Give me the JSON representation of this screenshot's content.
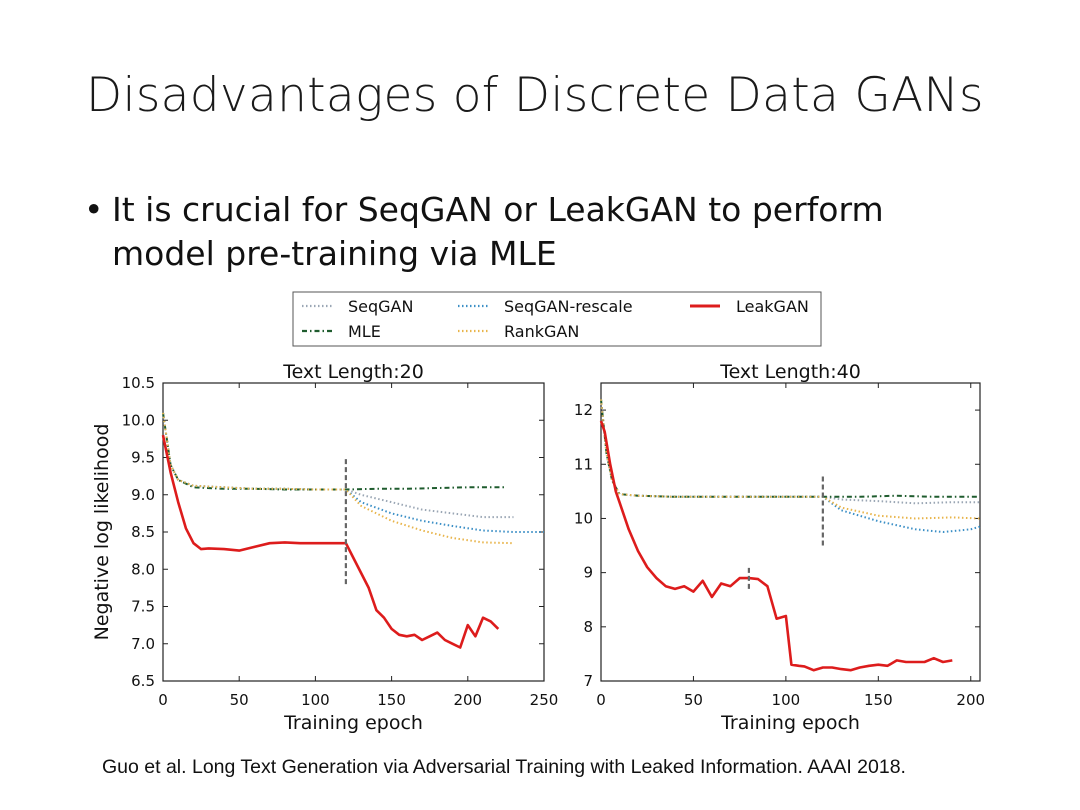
{
  "slide": {
    "title": "Disadvantages of Discrete Data GANs",
    "bullet_marker": "•",
    "bullet": "It is crucial for SeqGAN or LeakGAN to perform model pre-training via MLE",
    "citation": "Guo et al. Long Text Generation via Adversarial Training with Leaked Information. AAAI 2018."
  },
  "legend": [
    {
      "name": "SeqGAN",
      "color": "#9aa6b4",
      "dash": "dotted"
    },
    {
      "name": "SeqGAN-rescale",
      "color": "#3b8fc6",
      "dash": "dotted"
    },
    {
      "name": "LeakGAN",
      "color": "#dd1c1c",
      "dash": "solid"
    },
    {
      "name": "MLE",
      "color": "#1f5c2e",
      "dash": "dashdot"
    },
    {
      "name": "RankGAN",
      "color": "#e8b44a",
      "dash": "dotted"
    }
  ],
  "chart_data": [
    {
      "type": "line",
      "title": "Text Length:20",
      "xlabel": "Training epoch",
      "ylabel": "Negative log likelihood",
      "xlim": [
        0,
        250
      ],
      "ylim": [
        6.5,
        10.5
      ],
      "xticks": [
        "0",
        "50",
        "100",
        "150",
        "200",
        "250"
      ],
      "yticks": [
        "6.5",
        "7.0",
        "7.5",
        "8.0",
        "8.5",
        "9.0",
        "9.5",
        "10.0",
        "10.5"
      ],
      "xtick_values": [
        0,
        50,
        100,
        150,
        200,
        250
      ],
      "ytick_values": [
        6.5,
        7.0,
        7.5,
        8.0,
        8.5,
        9.0,
        9.5,
        10.0,
        10.5
      ],
      "marker_lines": [
        {
          "x": 120,
          "y1": 7.8,
          "y2": 9.5
        }
      ],
      "series": [
        {
          "name": "SeqGAN",
          "x": [
            0,
            5,
            10,
            20,
            40,
            60,
            80,
            100,
            120,
            130,
            150,
            170,
            190,
            210,
            230
          ],
          "y": [
            10.1,
            9.4,
            9.2,
            9.12,
            9.1,
            9.08,
            9.08,
            9.07,
            9.07,
            9.0,
            8.9,
            8.8,
            8.75,
            8.7,
            8.7
          ]
        },
        {
          "name": "MLE",
          "x": [
            0,
            5,
            10,
            20,
            40,
            60,
            80,
            100,
            120,
            140,
            160,
            180,
            200,
            225
          ],
          "y": [
            10.1,
            9.4,
            9.2,
            9.1,
            9.08,
            9.08,
            9.07,
            9.07,
            9.07,
            9.08,
            9.08,
            9.09,
            9.1,
            9.1
          ]
        },
        {
          "name": "SeqGAN-rescale",
          "x": [
            0,
            5,
            10,
            20,
            40,
            60,
            80,
            100,
            120,
            130,
            150,
            170,
            190,
            210,
            230,
            250
          ],
          "y": [
            10.1,
            9.4,
            9.2,
            9.12,
            9.1,
            9.08,
            9.08,
            9.07,
            9.07,
            8.9,
            8.75,
            8.65,
            8.58,
            8.52,
            8.5,
            8.5
          ]
        },
        {
          "name": "RankGAN",
          "x": [
            0,
            5,
            10,
            20,
            40,
            60,
            80,
            100,
            120,
            130,
            150,
            170,
            190,
            210,
            230
          ],
          "y": [
            10.1,
            9.4,
            9.2,
            9.12,
            9.1,
            9.08,
            9.08,
            9.07,
            9.07,
            8.85,
            8.65,
            8.52,
            8.42,
            8.36,
            8.35
          ]
        },
        {
          "name": "LeakGAN",
          "x": [
            0,
            5,
            10,
            15,
            20,
            25,
            30,
            40,
            50,
            60,
            70,
            80,
            90,
            100,
            110,
            120,
            125,
            130,
            135,
            140,
            145,
            150,
            155,
            160,
            165,
            170,
            175,
            180,
            185,
            190,
            195,
            200,
            205,
            210,
            215,
            220
          ],
          "y": [
            9.8,
            9.3,
            8.9,
            8.55,
            8.35,
            8.27,
            8.28,
            8.27,
            8.25,
            8.3,
            8.35,
            8.36,
            8.35,
            8.35,
            8.35,
            8.35,
            8.15,
            7.95,
            7.75,
            7.45,
            7.35,
            7.2,
            7.12,
            7.1,
            7.12,
            7.05,
            7.1,
            7.15,
            7.05,
            7.0,
            6.95,
            7.25,
            7.1,
            7.35,
            7.3,
            7.2
          ]
        }
      ]
    },
    {
      "type": "line",
      "title": "Text Length:40",
      "xlabel": "Training epoch",
      "ylabel": "",
      "xlim": [
        0,
        205
      ],
      "ylim": [
        7,
        12.5
      ],
      "xticks": [
        "0",
        "50",
        "100",
        "150",
        "200"
      ],
      "yticks": [
        "7",
        "8",
        "9",
        "10",
        "11",
        "12"
      ],
      "xtick_values": [
        0,
        50,
        100,
        150,
        200
      ],
      "ytick_values": [
        7,
        8,
        9,
        10,
        11,
        12
      ],
      "marker_lines": [
        {
          "x": 80,
          "y1": 8.7,
          "y2": 9.1
        },
        {
          "x": 120,
          "y1": 9.5,
          "y2": 10.8
        }
      ],
      "series": [
        {
          "name": "SeqGAN",
          "x": [
            0,
            3,
            6,
            10,
            20,
            40,
            60,
            80,
            100,
            120,
            130,
            150,
            170,
            190,
            205
          ],
          "y": [
            12.2,
            11.2,
            10.7,
            10.45,
            10.42,
            10.4,
            10.4,
            10.4,
            10.4,
            10.4,
            10.35,
            10.32,
            10.28,
            10.3,
            10.3
          ]
        },
        {
          "name": "MLE",
          "x": [
            0,
            3,
            6,
            10,
            20,
            40,
            60,
            80,
            100,
            120,
            140,
            160,
            180,
            200,
            205
          ],
          "y": [
            12.2,
            11.2,
            10.7,
            10.45,
            10.42,
            10.4,
            10.4,
            10.4,
            10.4,
            10.4,
            10.4,
            10.42,
            10.4,
            10.4,
            10.4
          ]
        },
        {
          "name": "SeqGAN-rescale",
          "x": [
            0,
            3,
            6,
            10,
            20,
            40,
            60,
            80,
            100,
            120,
            130,
            150,
            170,
            185,
            200,
            205
          ],
          "y": [
            12.2,
            11.2,
            10.7,
            10.45,
            10.42,
            10.4,
            10.4,
            10.4,
            10.4,
            10.4,
            10.15,
            9.95,
            9.8,
            9.75,
            9.8,
            9.85
          ]
        },
        {
          "name": "RankGAN",
          "x": [
            0,
            3,
            6,
            10,
            20,
            40,
            60,
            80,
            100,
            120,
            130,
            150,
            170,
            190,
            205
          ],
          "y": [
            12.2,
            11.2,
            10.7,
            10.45,
            10.42,
            10.4,
            10.4,
            10.4,
            10.4,
            10.4,
            10.2,
            10.05,
            10.0,
            10.02,
            10.0
          ]
        },
        {
          "name": "LeakGAN",
          "x": [
            0,
            2,
            5,
            8,
            10,
            15,
            20,
            25,
            30,
            35,
            40,
            45,
            50,
            55,
            60,
            65,
            70,
            75,
            80,
            85,
            90,
            95,
            100,
            103,
            107,
            110,
            115,
            120,
            125,
            130,
            135,
            140,
            145,
            150,
            155,
            160,
            165,
            170,
            175,
            180,
            185,
            190
          ],
          "y": [
            11.8,
            11.6,
            11.0,
            10.5,
            10.3,
            9.8,
            9.4,
            9.1,
            8.9,
            8.75,
            8.7,
            8.75,
            8.65,
            8.85,
            8.55,
            8.8,
            8.75,
            8.9,
            8.9,
            8.88,
            8.75,
            8.15,
            8.2,
            7.3,
            7.28,
            7.27,
            7.2,
            7.25,
            7.25,
            7.22,
            7.2,
            7.25,
            7.28,
            7.3,
            7.28,
            7.38,
            7.35,
            7.35,
            7.35,
            7.42,
            7.35,
            7.38
          ]
        }
      ]
    }
  ]
}
